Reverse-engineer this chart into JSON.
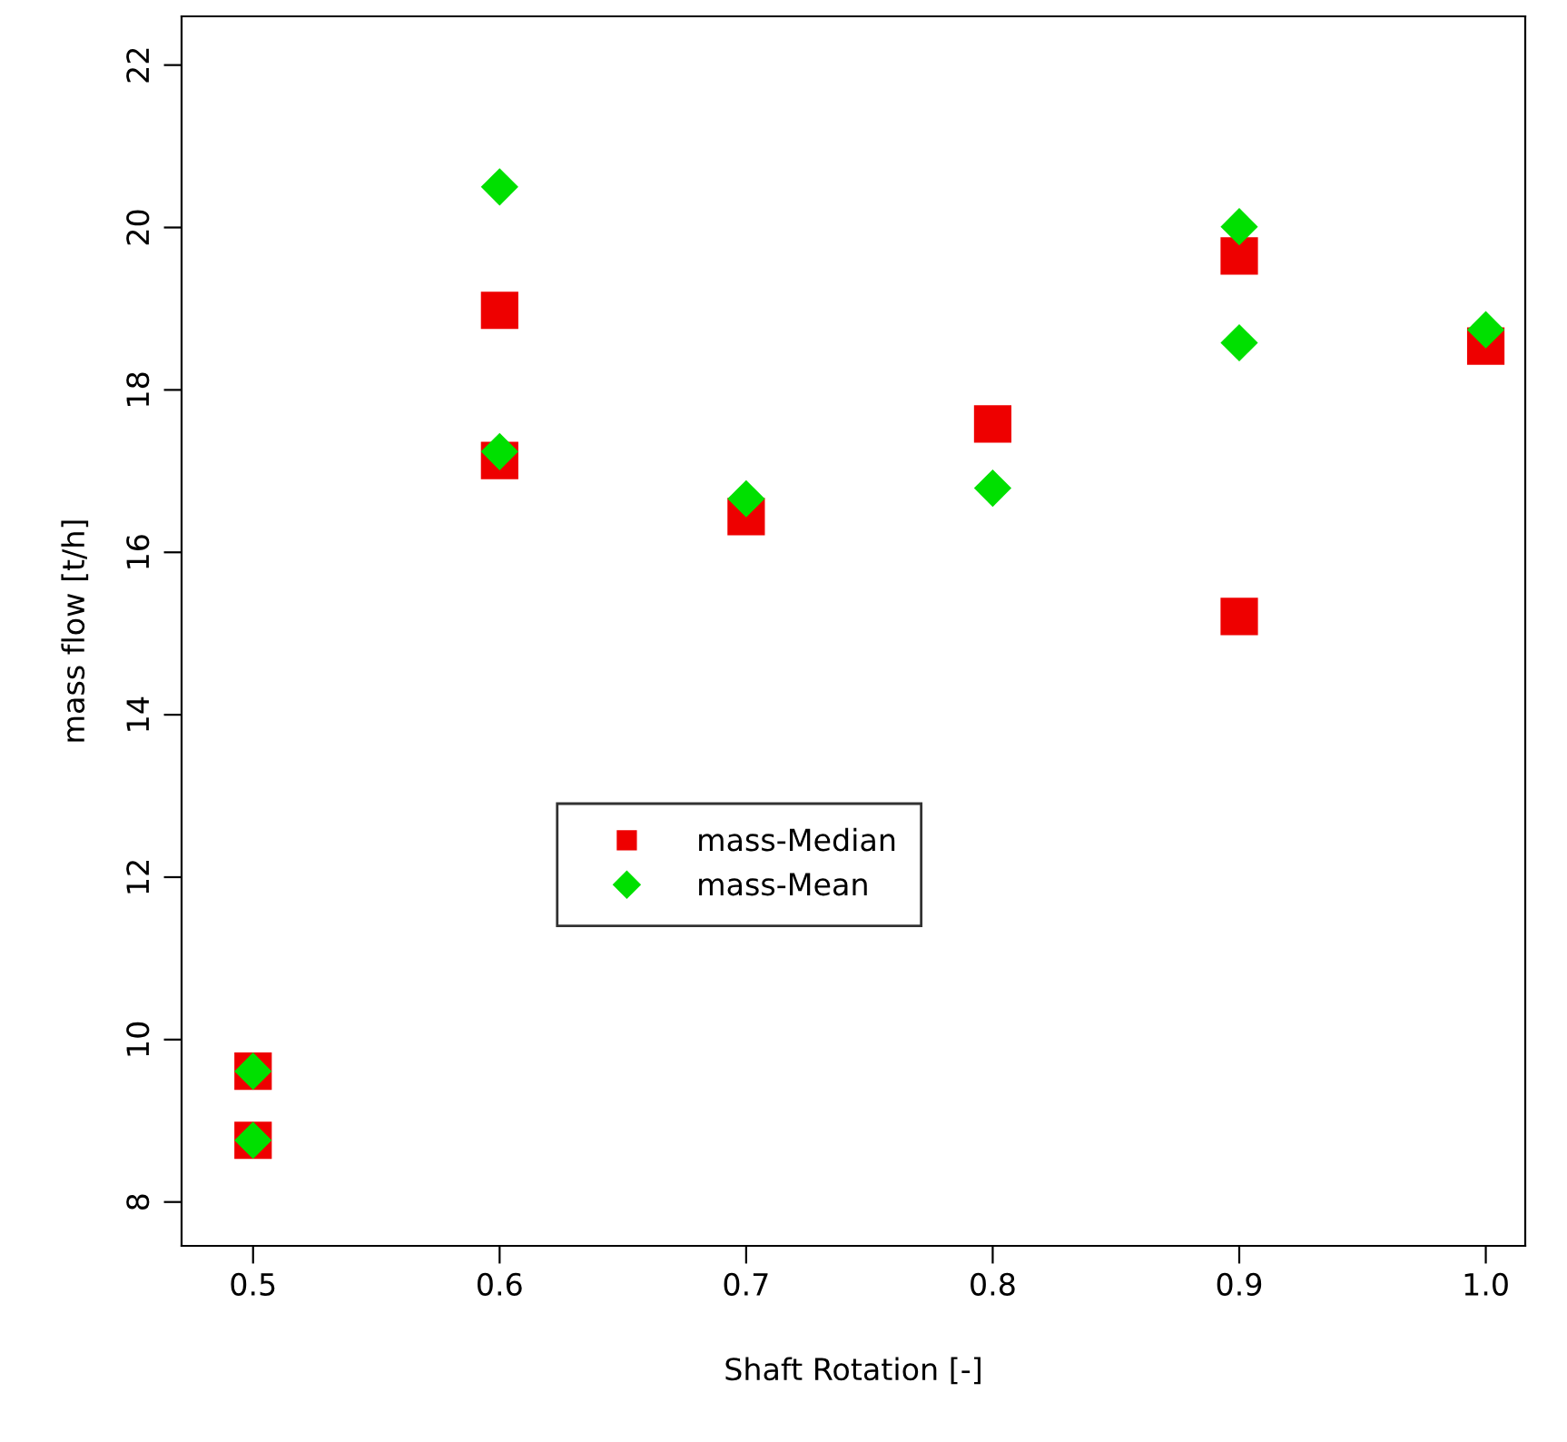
{
  "chart_data": {
    "type": "scatter",
    "xlabel": "Shaft Rotation [-]",
    "ylabel": "mass flow [t/h]",
    "xlim": [
      0.471,
      1.016
    ],
    "ylim": [
      7.46,
      22.6
    ],
    "xticks": [
      {
        "value": 0.5,
        "label": "0.5"
      },
      {
        "value": 0.6,
        "label": "0.6"
      },
      {
        "value": 0.7,
        "label": "0.7"
      },
      {
        "value": 0.8,
        "label": "0.8"
      },
      {
        "value": 0.9,
        "label": "0.9"
      },
      {
        "value": 1.0,
        "label": "1.0"
      }
    ],
    "yticks": [
      8,
      10,
      12,
      14,
      16,
      18,
      20,
      22
    ],
    "legend": "center",
    "grid": false,
    "series": [
      {
        "name": "mass-Median",
        "color": "#ee0000",
        "marker": "square",
        "x": [
          0.5,
          0.5,
          0.6,
          0.6,
          0.7,
          0.8,
          0.9,
          0.9,
          1.0
        ],
        "values": [
          9.61,
          8.76,
          18.98,
          17.13,
          16.44,
          17.58,
          19.65,
          15.21,
          18.54
        ]
      },
      {
        "name": "mass-Mean",
        "color": "#00e000",
        "marker": "diamond",
        "x": [
          0.5,
          0.5,
          0.6,
          0.6,
          0.7,
          0.8,
          0.9,
          0.9,
          1.0
        ],
        "values": [
          9.61,
          8.76,
          20.5,
          17.24,
          16.66,
          16.79,
          20.01,
          18.58,
          18.74
        ]
      }
    ]
  }
}
